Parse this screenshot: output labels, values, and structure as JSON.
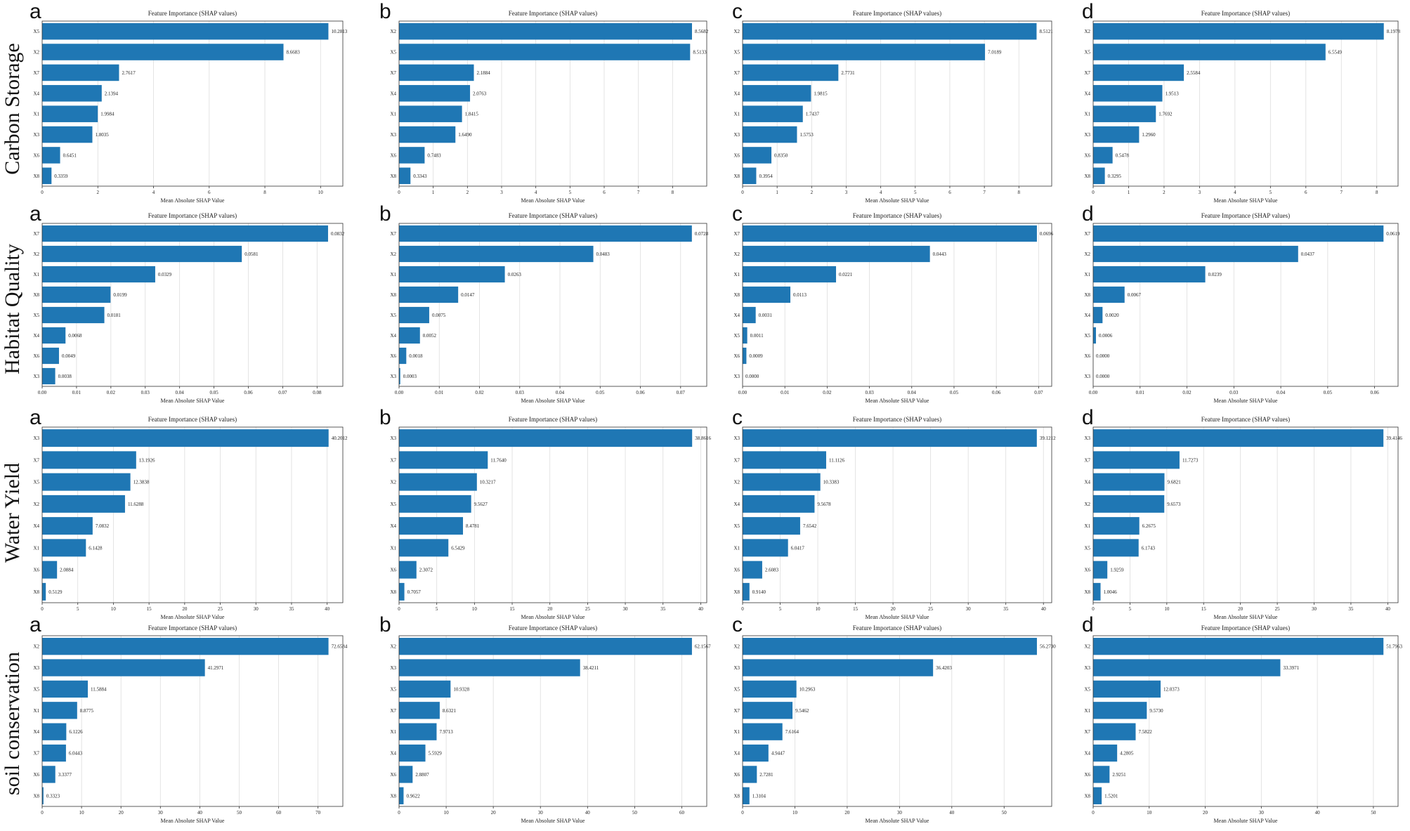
{
  "figure": {
    "row_labels": [
      "Carbon Storage",
      "Habitat Quality",
      "Water Yield",
      "soil conservation"
    ],
    "panel_letters": [
      "a",
      "b",
      "c",
      "d"
    ],
    "colors": {
      "bar": "#1f77b4",
      "grid": "#dddddd",
      "axis": "#333333"
    }
  },
  "chart_data": [
    {
      "type": "bar",
      "orientation": "horizontal",
      "row": "Carbon Storage",
      "panel": "a",
      "title": "Feature Importance (SHAP values)",
      "xlabel": "Mean Absolute SHAP Value",
      "categories": [
        "X5",
        "X2",
        "X7",
        "X4",
        "X1",
        "X3",
        "X6",
        "X8"
      ],
      "values": [
        10.2813,
        8.6683,
        2.7617,
        2.1394,
        1.9984,
        1.8035,
        0.6451,
        0.3359
      ],
      "labels": [
        "10.2813",
        "8.6683",
        "2.7617",
        "2.1394",
        "1.9984",
        "1.8035",
        "0.6451",
        "0.3359"
      ],
      "xlim": [
        0,
        10.8
      ],
      "xticks": [
        0,
        2,
        4,
        6,
        8,
        10
      ],
      "xtick_labels": [
        "0",
        "2",
        "4",
        "6",
        "8",
        "10"
      ]
    },
    {
      "type": "bar",
      "orientation": "horizontal",
      "row": "Carbon Storage",
      "panel": "b",
      "title": "Feature Importance (SHAP values)",
      "xlabel": "Mean Absolute SHAP Value",
      "categories": [
        "X2",
        "X5",
        "X7",
        "X4",
        "X1",
        "X3",
        "X6",
        "X8"
      ],
      "values": [
        8.5682,
        8.5133,
        2.1884,
        2.0763,
        1.8415,
        1.649,
        0.7483,
        0.3343
      ],
      "labels": [
        "8.5682",
        "8.5133",
        "2.1884",
        "2.0763",
        "1.8415",
        "1.6490",
        "0.7483",
        "0.3343"
      ],
      "xlim": [
        0,
        9.0
      ],
      "xticks": [
        0,
        1,
        2,
        3,
        4,
        5,
        6,
        7,
        8
      ],
      "xtick_labels": [
        "0",
        "1",
        "2",
        "3",
        "4",
        "5",
        "6",
        "7",
        "8"
      ]
    },
    {
      "type": "bar",
      "orientation": "horizontal",
      "row": "Carbon Storage",
      "panel": "c",
      "title": "Feature Importance (SHAP values)",
      "xlabel": "Mean Absolute SHAP Value",
      "categories": [
        "X2",
        "X5",
        "X7",
        "X4",
        "X1",
        "X3",
        "X6",
        "X8"
      ],
      "values": [
        8.5121,
        7.0189,
        2.7731,
        1.9815,
        1.7437,
        1.5753,
        0.835,
        0.3954
      ],
      "labels": [
        "8.5121",
        "7.0189",
        "2.7731",
        "1.9815",
        "1.7437",
        "1.5753",
        "0.8350",
        "0.3954"
      ],
      "xlim": [
        0,
        8.95
      ],
      "xticks": [
        0,
        1,
        2,
        3,
        4,
        5,
        6,
        7,
        8
      ],
      "xtick_labels": [
        "0",
        "1",
        "2",
        "3",
        "4",
        "5",
        "6",
        "7",
        "8"
      ]
    },
    {
      "type": "bar",
      "orientation": "horizontal",
      "row": "Carbon Storage",
      "panel": "d",
      "title": "Feature Importance (SHAP values)",
      "xlabel": "Mean Absolute SHAP Value",
      "categories": [
        "X2",
        "X5",
        "X7",
        "X4",
        "X1",
        "X3",
        "X6",
        "X8"
      ],
      "values": [
        8.1978,
        6.5549,
        2.5584,
        1.9513,
        1.7692,
        1.296,
        0.5478,
        0.3295
      ],
      "labels": [
        "8.1978",
        "6.5549",
        "2.5584",
        "1.9513",
        "1.7692",
        "1.2960",
        "0.5478",
        "0.3295"
      ],
      "xlim": [
        0,
        8.6
      ],
      "xticks": [
        0,
        1,
        2,
        3,
        4,
        5,
        6,
        7,
        8
      ],
      "xtick_labels": [
        "0",
        "1",
        "2",
        "3",
        "4",
        "5",
        "6",
        "7",
        "8"
      ]
    },
    {
      "type": "bar",
      "orientation": "horizontal",
      "row": "Habitat Quality",
      "panel": "a",
      "title": "Feature Importance (SHAP values)",
      "xlabel": "Mean Absolute SHAP Value",
      "categories": [
        "X7",
        "X2",
        "X1",
        "X8",
        "X5",
        "X4",
        "X6",
        "X3"
      ],
      "values": [
        0.0832,
        0.0581,
        0.0329,
        0.0199,
        0.0181,
        0.0068,
        0.0049,
        0.0038
      ],
      "labels": [
        "0.0832",
        "0.0581",
        "0.0329",
        "0.0199",
        "0.0181",
        "0.0068",
        "0.0049",
        "0.0038"
      ],
      "xlim": [
        0,
        0.0875
      ],
      "xticks": [
        0,
        0.01,
        0.02,
        0.03,
        0.04,
        0.05,
        0.06,
        0.07,
        0.08
      ],
      "xtick_labels": [
        "0.00",
        "0.01",
        "0.02",
        "0.03",
        "0.04",
        "0.05",
        "0.06",
        "0.07",
        "0.08"
      ]
    },
    {
      "type": "bar",
      "orientation": "horizontal",
      "row": "Habitat Quality",
      "panel": "b",
      "title": "Feature Importance (SHAP values)",
      "xlabel": "Mean Absolute SHAP Value",
      "categories": [
        "X7",
        "X2",
        "X1",
        "X8",
        "X5",
        "X4",
        "X6",
        "X3"
      ],
      "values": [
        0.0728,
        0.0483,
        0.0263,
        0.0147,
        0.0075,
        0.0052,
        0.0018,
        0.0003
      ],
      "labels": [
        "0.0728",
        "0.0483",
        "0.0263",
        "0.0147",
        "0.0075",
        "0.0052",
        "0.0018",
        "0.0003"
      ],
      "xlim": [
        0,
        0.0765
      ],
      "xticks": [
        0,
        0.01,
        0.02,
        0.03,
        0.04,
        0.05,
        0.06,
        0.07
      ],
      "xtick_labels": [
        "0.00",
        "0.01",
        "0.02",
        "0.03",
        "0.04",
        "0.05",
        "0.06",
        "0.07"
      ]
    },
    {
      "type": "bar",
      "orientation": "horizontal",
      "row": "Habitat Quality",
      "panel": "c",
      "title": "Feature Importance (SHAP values)",
      "xlabel": "Mean Absolute SHAP Value",
      "categories": [
        "X7",
        "X2",
        "X1",
        "X8",
        "X4",
        "X5",
        "X6",
        "X3"
      ],
      "values": [
        0.0696,
        0.0443,
        0.0221,
        0.0113,
        0.0031,
        0.0011,
        0.0009,
        0.0
      ],
      "labels": [
        "0.0696",
        "0.0443",
        "0.0221",
        "0.0113",
        "0.0031",
        "0.0011",
        "0.0009",
        "0.0000"
      ],
      "xlim": [
        0,
        0.0731
      ],
      "xticks": [
        0,
        0.01,
        0.02,
        0.03,
        0.04,
        0.05,
        0.06,
        0.07
      ],
      "xtick_labels": [
        "0.00",
        "0.01",
        "0.02",
        "0.03",
        "0.04",
        "0.05",
        "0.06",
        "0.07"
      ]
    },
    {
      "type": "bar",
      "orientation": "horizontal",
      "row": "Habitat Quality",
      "panel": "d",
      "title": "Feature Importance (SHAP values)",
      "xlabel": "Mean Absolute SHAP Value",
      "categories": [
        "X7",
        "X2",
        "X1",
        "X8",
        "X4",
        "X5",
        "X6",
        "X3"
      ],
      "values": [
        0.0619,
        0.0437,
        0.0239,
        0.0067,
        0.002,
        0.0006,
        0.0,
        0.0
      ],
      "labels": [
        "0.0619",
        "0.0437",
        "0.0239",
        "0.0067",
        "0.0020",
        "0.0006",
        "0.0000",
        "0.0000"
      ],
      "xlim": [
        0,
        0.065
      ],
      "xticks": [
        0,
        0.01,
        0.02,
        0.03,
        0.04,
        0.05,
        0.06
      ],
      "xtick_labels": [
        "0.00",
        "0.01",
        "0.02",
        "0.03",
        "0.04",
        "0.05",
        "0.06"
      ]
    },
    {
      "type": "bar",
      "orientation": "horizontal",
      "row": "Water Yield",
      "panel": "a",
      "title": "Feature Importance (SHAP values)",
      "xlabel": "Mean Absolute SHAP Value",
      "categories": [
        "X3",
        "X7",
        "X5",
        "X2",
        "X4",
        "X1",
        "X6",
        "X8"
      ],
      "values": [
        40.2012,
        13.1926,
        12.3838,
        11.6288,
        7.0832,
        6.1428,
        2.0884,
        0.5129
      ],
      "labels": [
        "40.2012",
        "13.1926",
        "12.3838",
        "11.6288",
        "7.0832",
        "6.1428",
        "2.0884",
        "0.5129"
      ],
      "xlim": [
        0,
        42.2
      ],
      "xticks": [
        0,
        5,
        10,
        15,
        20,
        25,
        30,
        35,
        40
      ],
      "xtick_labels": [
        "0",
        "5",
        "10",
        "15",
        "20",
        "25",
        "30",
        "35",
        "40"
      ]
    },
    {
      "type": "bar",
      "orientation": "horizontal",
      "row": "Water Yield",
      "panel": "b",
      "title": "Feature Importance (SHAP values)",
      "xlabel": "Mean Absolute SHAP Value",
      "categories": [
        "X3",
        "X7",
        "X2",
        "X5",
        "X4",
        "X1",
        "X6",
        "X8"
      ],
      "values": [
        38.8616,
        11.764,
        10.3217,
        9.5627,
        8.4781,
        6.5429,
        2.3072,
        0.7057
      ],
      "labels": [
        "38.8616",
        "11.7640",
        "10.3217",
        "9.5627",
        "8.4781",
        "6.5429",
        "2.3072",
        "0.7057"
      ],
      "xlim": [
        0,
        40.8
      ],
      "xticks": [
        0,
        5,
        10,
        15,
        20,
        25,
        30,
        35,
        40
      ],
      "xtick_labels": [
        "0",
        "5",
        "10",
        "15",
        "20",
        "25",
        "30",
        "35",
        "40"
      ]
    },
    {
      "type": "bar",
      "orientation": "horizontal",
      "row": "Water Yield",
      "panel": "c",
      "title": "Feature Importance (SHAP values)",
      "xlabel": "Mean Absolute SHAP Value",
      "categories": [
        "X3",
        "X7",
        "X2",
        "X4",
        "X5",
        "X1",
        "X6",
        "X8"
      ],
      "values": [
        39.1212,
        11.1126,
        10.3383,
        9.5678,
        7.6542,
        6.0417,
        2.6083,
        0.914
      ],
      "labels": [
        "39.1212",
        "11.1126",
        "10.3383",
        "9.5678",
        "7.6542",
        "6.0417",
        "2.6083",
        "0.9140"
      ],
      "xlim": [
        0,
        41.1
      ],
      "xticks": [
        0,
        5,
        10,
        15,
        20,
        25,
        30,
        35,
        40
      ],
      "xtick_labels": [
        "0",
        "5",
        "10",
        "15",
        "20",
        "25",
        "30",
        "35",
        "40"
      ]
    },
    {
      "type": "bar",
      "orientation": "horizontal",
      "row": "Water Yield",
      "panel": "d",
      "title": "Feature Importance (SHAP values)",
      "xlabel": "Mean Absolute SHAP Value",
      "categories": [
        "X3",
        "X7",
        "X4",
        "X2",
        "X1",
        "X5",
        "X6",
        "X8"
      ],
      "values": [
        39.4146,
        11.7273,
        9.6821,
        9.6573,
        6.2675,
        6.1743,
        1.9259,
        1.0046
      ],
      "labels": [
        "39.4146",
        "11.7273",
        "9.6821",
        "9.6573",
        "6.2675",
        "6.1743",
        "1.9259",
        "1.0046"
      ],
      "xlim": [
        0,
        41.4
      ],
      "xticks": [
        0,
        5,
        10,
        15,
        20,
        25,
        30,
        35,
        40
      ],
      "xtick_labels": [
        "0",
        "5",
        "10",
        "15",
        "20",
        "25",
        "30",
        "35",
        "40"
      ]
    },
    {
      "type": "bar",
      "orientation": "horizontal",
      "row": "soil conservation",
      "panel": "a",
      "title": "Feature Importance (SHAP values)",
      "xlabel": "Mean Absolute SHAP Value",
      "categories": [
        "X2",
        "X3",
        "X5",
        "X1",
        "X4",
        "X7",
        "X6",
        "X8"
      ],
      "values": [
        72.6584,
        41.2971,
        11.5884,
        8.8775,
        6.1226,
        6.0443,
        3.3377,
        0.3323
      ],
      "labels": [
        "72.6584",
        "41.2971",
        "11.5884",
        "8.8775",
        "6.1226",
        "6.0443",
        "3.3377",
        "0.3323"
      ],
      "xlim": [
        0,
        76.3
      ],
      "xticks": [
        0,
        10,
        20,
        30,
        40,
        50,
        60,
        70
      ],
      "xtick_labels": [
        "0",
        "10",
        "20",
        "30",
        "40",
        "50",
        "60",
        "70"
      ]
    },
    {
      "type": "bar",
      "orientation": "horizontal",
      "row": "soil conservation",
      "panel": "b",
      "title": "Feature Importance (SHAP values)",
      "xlabel": "Mean Absolute SHAP Value",
      "categories": [
        "X2",
        "X3",
        "X5",
        "X7",
        "X1",
        "X4",
        "X6",
        "X8"
      ],
      "values": [
        62.1567,
        38.4211,
        10.9328,
        8.6321,
        7.9713,
        5.5929,
        2.8807,
        0.9622
      ],
      "labels": [
        "62.1567",
        "38.4211",
        "10.9328",
        "8.6321",
        "7.9713",
        "5.5929",
        "2.8807",
        "0.9622"
      ],
      "xlim": [
        0,
        65.3
      ],
      "xticks": [
        0,
        10,
        20,
        30,
        40,
        50,
        60
      ],
      "xtick_labels": [
        "0",
        "10",
        "20",
        "30",
        "40",
        "50",
        "60"
      ]
    },
    {
      "type": "bar",
      "orientation": "horizontal",
      "row": "soil conservation",
      "panel": "c",
      "title": "Feature Importance (SHAP values)",
      "xlabel": "Mean Absolute SHAP Value",
      "categories": [
        "X2",
        "X3",
        "X5",
        "X7",
        "X1",
        "X4",
        "X6",
        "X8"
      ],
      "values": [
        56.273,
        36.4203,
        10.2963,
        9.5462,
        7.6164,
        4.9447,
        2.7281,
        1.3104
      ],
      "labels": [
        "56.2730",
        "36.4203",
        "10.2963",
        "9.5462",
        "7.6164",
        "4.9447",
        "2.7281",
        "1.3104"
      ],
      "xlim": [
        0,
        59.1
      ],
      "xticks": [
        0,
        10,
        20,
        30,
        40,
        50
      ],
      "xtick_labels": [
        "0",
        "10",
        "20",
        "30",
        "40",
        "50"
      ]
    },
    {
      "type": "bar",
      "orientation": "horizontal",
      "row": "soil conservation",
      "panel": "d",
      "title": "Feature Importance (SHAP values)",
      "xlabel": "Mean Absolute SHAP Value",
      "categories": [
        "X2",
        "X3",
        "X5",
        "X1",
        "X7",
        "X4",
        "X6",
        "X8"
      ],
      "values": [
        51.7963,
        33.3971,
        12.0373,
        9.573,
        7.5822,
        4.2805,
        2.9251,
        1.5201
      ],
      "labels": [
        "51.7963",
        "33.3971",
        "12.0373",
        "9.5730",
        "7.5822",
        "4.2805",
        "2.9251",
        "1.5201"
      ],
      "xlim": [
        0,
        54.4
      ],
      "xticks": [
        0,
        10,
        20,
        30,
        40,
        50
      ],
      "xtick_labels": [
        "0",
        "10",
        "20",
        "30",
        "40",
        "50"
      ]
    }
  ]
}
